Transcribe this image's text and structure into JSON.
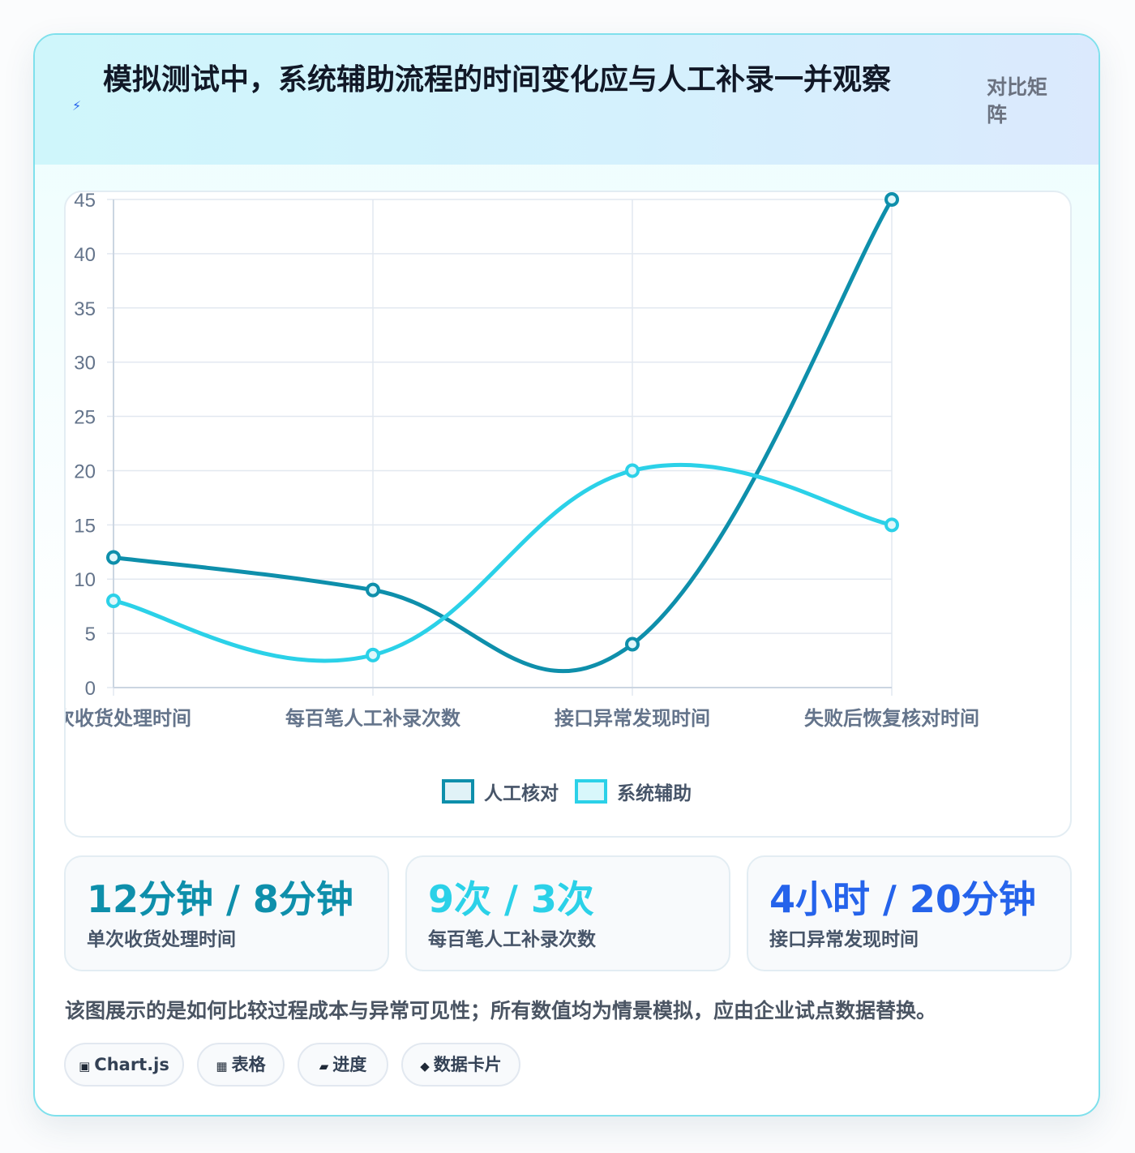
{
  "header": {
    "icon": "lightning-icon",
    "title": "模拟测试中，系统辅助流程的时间变化应与人工补录一并观察",
    "badge": "对比矩阵"
  },
  "chart_data": {
    "type": "line",
    "categories": [
      "单次收货处理时间",
      "每百笔人工补录次数",
      "接口异常发现时间",
      "失败后恢复核对时间"
    ],
    "series": [
      {
        "name": "人工核对",
        "values": [
          12,
          9,
          4,
          45
        ],
        "color": "#0e8fab"
      },
      {
        "name": "系统辅助",
        "values": [
          8,
          3,
          20,
          15
        ],
        "color": "#2bd1e8"
      }
    ],
    "ylim": [
      0,
      45
    ],
    "yticks": [
      0,
      5,
      10,
      15,
      20,
      25,
      30,
      35,
      40,
      45
    ],
    "legend_position": "bottom",
    "grid": true,
    "curve": "smooth"
  },
  "stats": [
    {
      "value": "12分钟 / 8分钟",
      "label": "单次收货处理时间",
      "color": "#0e8fab"
    },
    {
      "value": "9次 / 3次",
      "label": "每百笔人工补录次数",
      "color": "#2bd1e8"
    },
    {
      "value": "4小时 / 20分钟",
      "label": "接口异常发现时间",
      "color": "#2563eb"
    }
  ],
  "note": "该图展示的是如何比较过程成本与异常可见性；所有数值均为情景模拟，应由企业试点数据替换。",
  "chips": [
    {
      "icon": "chart-icon",
      "glyph": "▣",
      "label": "Chart.js"
    },
    {
      "icon": "table-icon",
      "glyph": "▦",
      "label": "表格"
    },
    {
      "icon": "progress-icon",
      "glyph": "▰",
      "label": "进度"
    },
    {
      "icon": "data-card-icon",
      "glyph": "◆",
      "label": "数据卡片"
    }
  ]
}
